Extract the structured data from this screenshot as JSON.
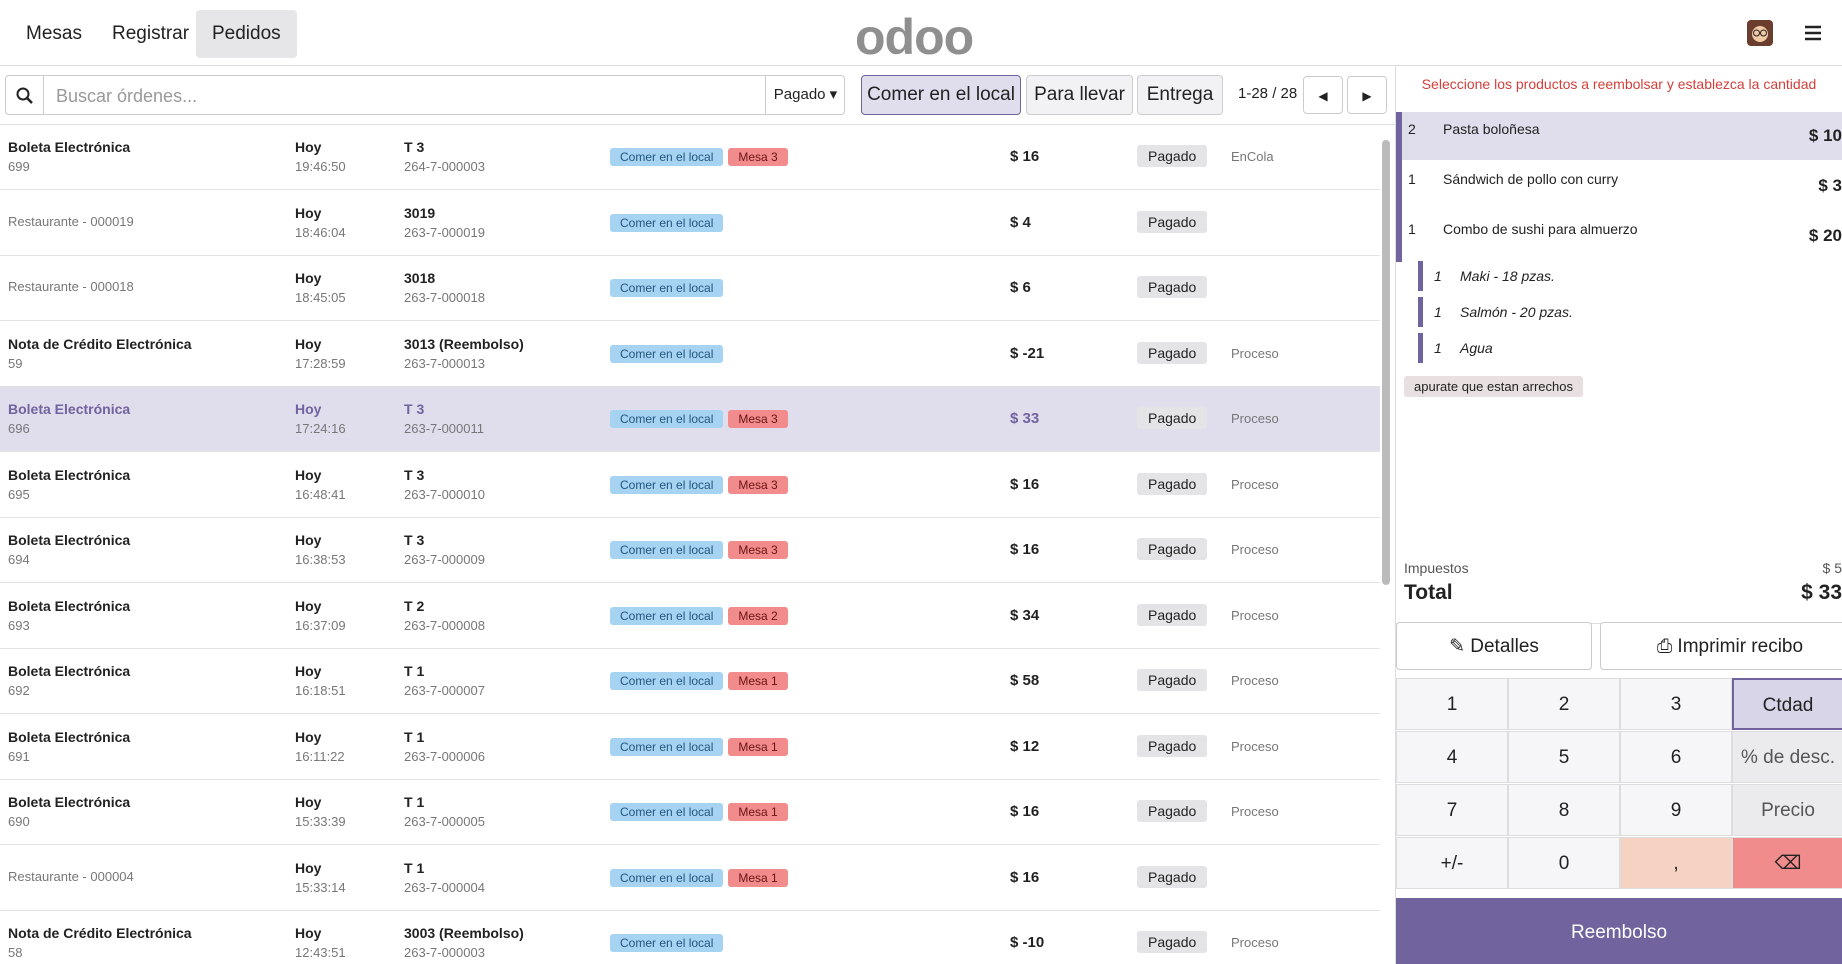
{
  "nav": {
    "tabs": [
      "Mesas",
      "Registrar",
      "Pedidos"
    ],
    "logo": "odoo"
  },
  "search": {
    "placeholder": "Buscar órdenes...",
    "filter": "Pagado",
    "modes": [
      "Comer en el local",
      "Para llevar",
      "Entrega"
    ],
    "pager": "1-28 / 28"
  },
  "orders": [
    {
      "name": "Boleta Electrónica",
      "number": "699",
      "date": "Hoy",
      "time": "19:46:50",
      "ref": "T 3",
      "receipt": "264-7-000003",
      "tags": [
        "Comer en el local",
        "Mesa 3"
      ],
      "amount": "$ 16",
      "status": "Pagado",
      "state": "EnCola"
    },
    {
      "name": "Restaurante - 000019",
      "date": "Hoy",
      "time": "18:46:04",
      "ref": "3019",
      "receipt": "263-7-000019",
      "tags": [
        "Comer en el local"
      ],
      "amount": "$ 4",
      "status": "Pagado"
    },
    {
      "name": "Restaurante - 000018",
      "date": "Hoy",
      "time": "18:45:05",
      "ref": "3018",
      "receipt": "263-7-000018",
      "tags": [
        "Comer en el local"
      ],
      "amount": "$ 6",
      "status": "Pagado"
    },
    {
      "name": "Nota de Crédito Electrónica",
      "number": "59",
      "date": "Hoy",
      "time": "17:28:59",
      "ref": "3013 (Reembolso)",
      "receipt": "263-7-000013",
      "tags": [
        "Comer en el local"
      ],
      "amount": "$ -21",
      "status": "Pagado",
      "state": "Proceso"
    },
    {
      "name": "Boleta Electrónica",
      "number": "696",
      "date": "Hoy",
      "time": "17:24:16",
      "ref": "T 3",
      "receipt": "263-7-000011",
      "tags": [
        "Comer en el local",
        "Mesa 3"
      ],
      "amount": "$ 33",
      "status": "Pagado",
      "state": "Proceso",
      "selected": true
    },
    {
      "name": "Boleta Electrónica",
      "number": "695",
      "date": "Hoy",
      "time": "16:48:41",
      "ref": "T 3",
      "receipt": "263-7-000010",
      "tags": [
        "Comer en el local",
        "Mesa 3"
      ],
      "amount": "$ 16",
      "status": "Pagado",
      "state": "Proceso"
    },
    {
      "name": "Boleta Electrónica",
      "number": "694",
      "date": "Hoy",
      "time": "16:38:53",
      "ref": "T 3",
      "receipt": "263-7-000009",
      "tags": [
        "Comer en el local",
        "Mesa 3"
      ],
      "amount": "$ 16",
      "status": "Pagado",
      "state": "Proceso"
    },
    {
      "name": "Boleta Electrónica",
      "number": "693",
      "date": "Hoy",
      "time": "16:37:09",
      "ref": "T 2",
      "receipt": "263-7-000008",
      "tags": [
        "Comer en el local",
        "Mesa 2"
      ],
      "amount": "$ 34",
      "status": "Pagado",
      "state": "Proceso"
    },
    {
      "name": "Boleta Electrónica",
      "number": "692",
      "date": "Hoy",
      "time": "16:18:51",
      "ref": "T 1",
      "receipt": "263-7-000007",
      "tags": [
        "Comer en el local",
        "Mesa 1"
      ],
      "amount": "$ 58",
      "status": "Pagado",
      "state": "Proceso"
    },
    {
      "name": "Boleta Electrónica",
      "number": "691",
      "date": "Hoy",
      "time": "16:11:22",
      "ref": "T 1",
      "receipt": "263-7-000006",
      "tags": [
        "Comer en el local",
        "Mesa 1"
      ],
      "amount": "$ 12",
      "status": "Pagado",
      "state": "Proceso"
    },
    {
      "name": "Boleta Electrónica",
      "number": "690",
      "date": "Hoy",
      "time": "15:33:39",
      "ref": "T 1",
      "receipt": "263-7-000005",
      "tags": [
        "Comer en el local",
        "Mesa 1"
      ],
      "amount": "$ 16",
      "status": "Pagado",
      "state": "Proceso"
    },
    {
      "name": "Restaurante - 000004",
      "date": "Hoy",
      "time": "15:33:14",
      "ref": "T 1",
      "receipt": "263-7-000004",
      "tags": [
        "Comer en el local",
        "Mesa 1"
      ],
      "amount": "$ 16",
      "status": "Pagado"
    },
    {
      "name": "Nota de Crédito Electrónica",
      "number": "58",
      "date": "Hoy",
      "time": "12:43:51",
      "ref": "3003 (Reembolso)",
      "receipt": "263-7-000003",
      "tags": [
        "Comer en el local"
      ],
      "amount": "$ -10",
      "status": "Pagado",
      "state": "Proceso"
    }
  ],
  "refund": {
    "hint": "Seleccione los productos a reembolsar y establezca la cantidad",
    "lines": [
      {
        "qty": "2",
        "name": "Pasta boloñesa",
        "price": "$ 10"
      },
      {
        "qty": "1",
        "name": "Sándwich de pollo con curry",
        "price": "$ 3"
      },
      {
        "qty": "1",
        "name": "Combo de sushi para almuerzo",
        "price": "$ 20"
      }
    ],
    "combo": [
      {
        "qty": "1",
        "name": "Maki - 18 pzas."
      },
      {
        "qty": "1",
        "name": "Salmón - 20 pzas."
      },
      {
        "qty": "1",
        "name": "Agua"
      }
    ],
    "note": "apurate que estan arrechos",
    "tax_label": "Impuestos",
    "tax": "$ 5",
    "total_label": "Total",
    "total": "$ 33",
    "buttons": [
      "Detalles",
      "Imprimir recibo"
    ],
    "keypad": [
      "1",
      "2",
      "3",
      "Ctdad",
      "4",
      "5",
      "6",
      "% de desc.",
      "7",
      "8",
      "9",
      "Precio",
      "+/-",
      "0",
      ",",
      "⌫"
    ],
    "submit": "Reembolso"
  }
}
